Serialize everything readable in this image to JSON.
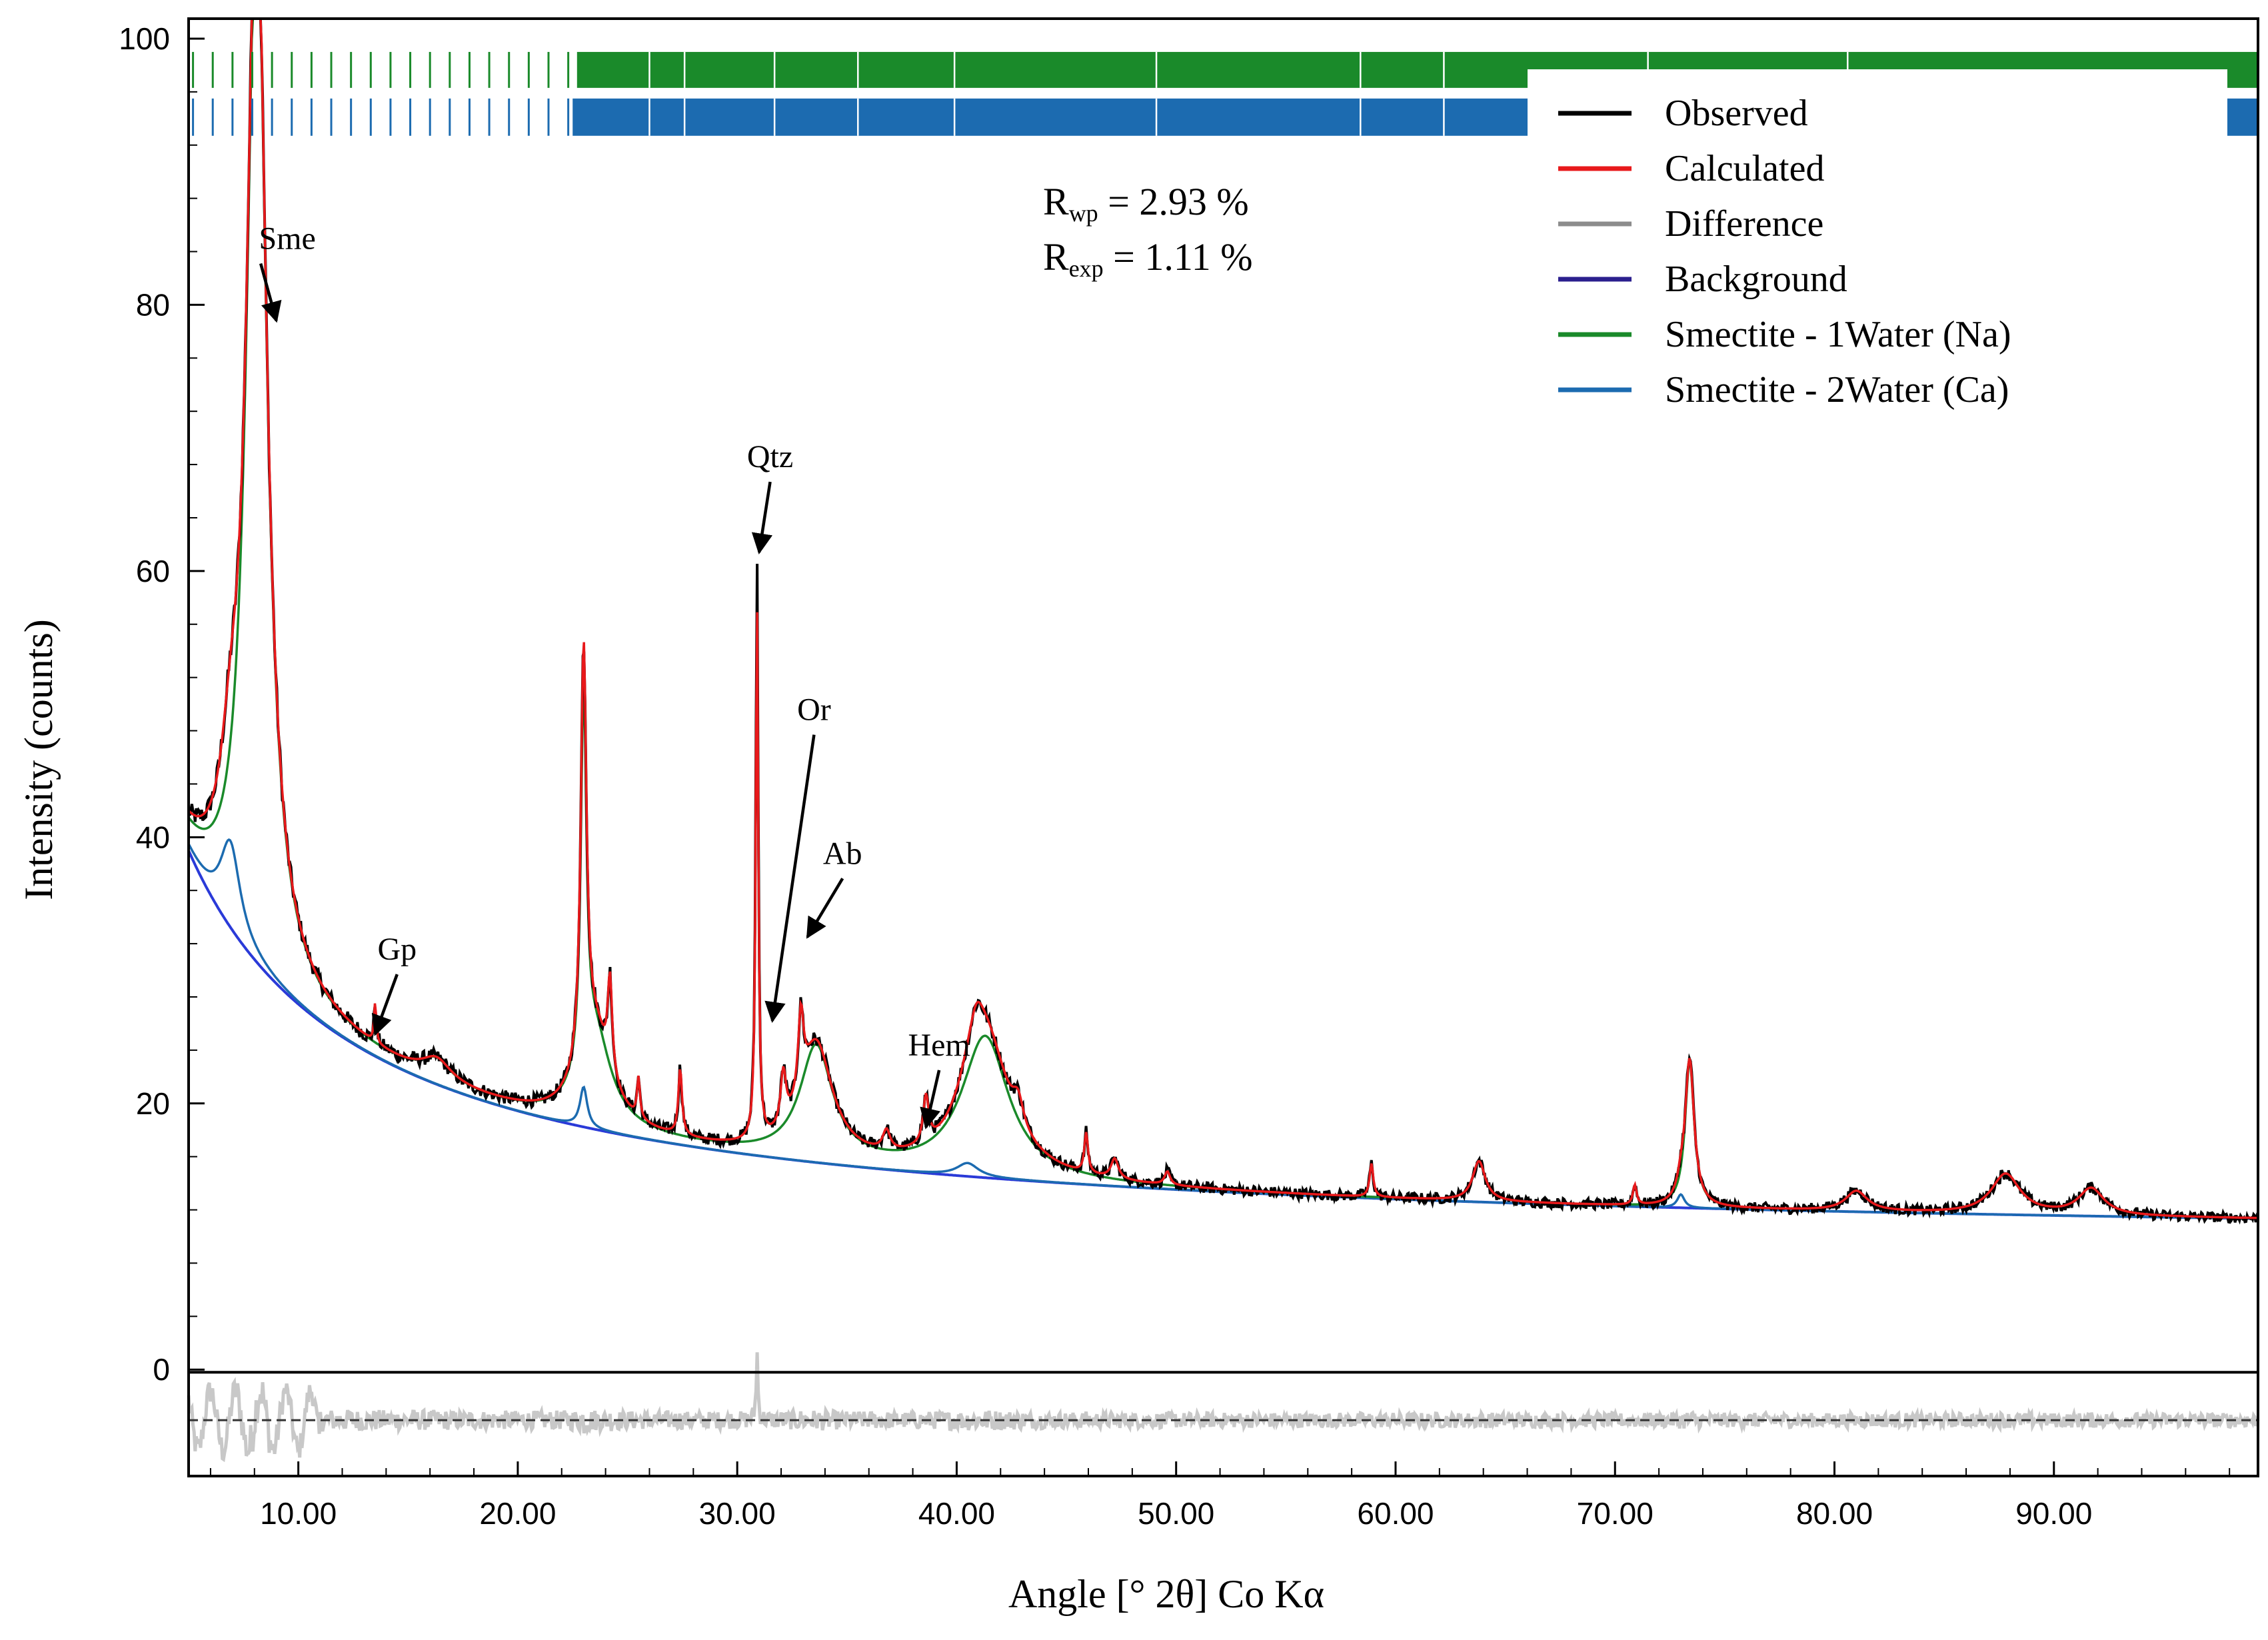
{
  "chart_data": {
    "type": "line",
    "title": "",
    "xlabel": "Angle [° 2θ] Co Kα",
    "ylabel": "Intensity (counts)",
    "xlim": [
      5.0,
      99.3
    ],
    "ylim": [
      -8,
      101.5
    ],
    "x_ticks": [
      10,
      20,
      30,
      40,
      50,
      60,
      70,
      80,
      90
    ],
    "x_tick_labels": [
      "10.00",
      "20.00",
      "30.00",
      "40.00",
      "50.00",
      "60.00",
      "70.00",
      "80.00",
      "90.00"
    ],
    "y_ticks": [
      0,
      20,
      40,
      60,
      80,
      100
    ],
    "y_tick_labels": [
      "0",
      "20",
      "40",
      "60",
      "80",
      "100"
    ],
    "difference_zero_line": -3.8,
    "stats": {
      "rwp_sub": "wp",
      "rwp_value": " = 2.93 %",
      "rexp_sub": "exp",
      "rexp_value": " = 1.11 %"
    },
    "legend": {
      "position": "top-right",
      "entries": [
        {
          "label": "Observed",
          "color": "#000000"
        },
        {
          "label": "Calculated",
          "color": "#e8191b"
        },
        {
          "label": "Difference",
          "color": "#8c8c8c"
        },
        {
          "label": "Background",
          "color": "#2b1f8e"
        },
        {
          "label": "Smectite - 1Water (Na)",
          "color": "#1a8a2a"
        },
        {
          "label": "Smectite - 2Water (Ca)",
          "color": "#1c6bb0"
        }
      ]
    },
    "background": {
      "a": 9.0,
      "b": 48.0,
      "x0": 2.0,
      "d": 5.0,
      "c": 0.92
    },
    "series": [
      {
        "name": "Smectite - 1Water (Na)",
        "color": "#1a8a2a",
        "peaks": [
          {
            "x": 8.1,
            "h": 80,
            "w": 0.55
          },
          {
            "x": 16.3,
            "h": 1.5,
            "w": 0.8
          },
          {
            "x": 23.0,
            "h": 28,
            "w": 0.15
          },
          {
            "x": 23.5,
            "h": 7,
            "w": 0.9
          },
          {
            "x": 33.6,
            "h": 8.5,
            "w": 0.9
          },
          {
            "x": 41.3,
            "h": 10.5,
            "w": 1.3
          },
          {
            "x": 63.8,
            "h": 3,
            "w": 0.35
          },
          {
            "x": 73.4,
            "h": 11,
            "w": 0.25
          },
          {
            "x": 81.0,
            "h": 1.5,
            "w": 0.6
          },
          {
            "x": 87.8,
            "h": 3,
            "w": 0.8
          },
          {
            "x": 91.7,
            "h": 2,
            "w": 0.7
          }
        ]
      },
      {
        "name": "Smectite - 2Water (Ca)",
        "color": "#1c6bb0",
        "peaks": [
          {
            "x": 6.9,
            "h": 6.5,
            "w": 0.55
          },
          {
            "x": 23.0,
            "h": 3,
            "w": 0.2
          },
          {
            "x": 40.5,
            "h": 1,
            "w": 0.6
          },
          {
            "x": 73.0,
            "h": 1,
            "w": 0.2
          }
        ]
      },
      {
        "name": "Calculated",
        "color": "#e8191b",
        "extra_peaks": [
          {
            "x": 13.5,
            "h": 3.0,
            "w": 0.06
          },
          {
            "x": 24.2,
            "h": 7,
            "w": 0.12
          },
          {
            "x": 25.5,
            "h": 3,
            "w": 0.08
          },
          {
            "x": 27.4,
            "h": 5,
            "w": 0.1
          },
          {
            "x": 30.9,
            "h": 40,
            "w": 0.07
          },
          {
            "x": 32.1,
            "h": 4,
            "w": 0.15
          },
          {
            "x": 32.9,
            "h": 6,
            "w": 0.15
          },
          {
            "x": 36.8,
            "h": 1.5,
            "w": 0.2
          },
          {
            "x": 38.6,
            "h": 3.5,
            "w": 0.15
          },
          {
            "x": 40.9,
            "h": 2.5,
            "w": 0.4
          },
          {
            "x": 42.8,
            "h": 2,
            "w": 0.3
          },
          {
            "x": 45.9,
            "h": 3,
            "w": 0.1
          },
          {
            "x": 47.2,
            "h": 1.5,
            "w": 0.2
          },
          {
            "x": 49.6,
            "h": 1,
            "w": 0.15
          },
          {
            "x": 58.9,
            "h": 2.5,
            "w": 0.1
          },
          {
            "x": 70.9,
            "h": 1.5,
            "w": 0.1
          }
        ]
      }
    ],
    "observed_extra_peaks": [
      {
        "x": 30.9,
        "h": 3.5,
        "w": 0.05
      }
    ],
    "tick_rows": [
      {
        "name": "Smectite - 1Water (Na)",
        "color": "#1a8a2a",
        "y_top": 99,
        "y_bottom": 96.3,
        "sparse_to": 22.7,
        "dense_from": 22.7
      },
      {
        "name": "Smectite - 2Water (Ca)",
        "color": "#1c6bb0",
        "y_top": 95.5,
        "y_bottom": 92.7,
        "sparse_to": 22.5,
        "dense_from": 22.5
      }
    ],
    "annotations": [
      {
        "label": "Sme",
        "x": 9.5,
        "y": 84.2,
        "tx": 9.0,
        "ty": 78.8
      },
      {
        "label": "Gp",
        "x": 14.5,
        "y": 30.8,
        "tx": 13.5,
        "ty": 25.2
      },
      {
        "label": "Qtz",
        "x": 31.5,
        "y": 67.8,
        "tx": 31.0,
        "ty": 61.4
      },
      {
        "label": "Or",
        "x": 33.5,
        "y": 48.8,
        "tx": 31.6,
        "ty": 26.2
      },
      {
        "label": "Ab",
        "x": 34.8,
        "y": 38.0,
        "tx": 33.2,
        "ty": 32.5
      },
      {
        "label": "Hem",
        "x": 39.2,
        "y": 23.6,
        "tx": 38.6,
        "ty": 18.2
      }
    ]
  }
}
